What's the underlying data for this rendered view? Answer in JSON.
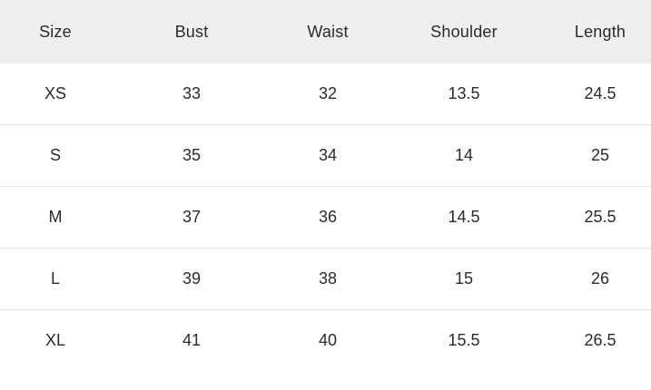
{
  "colors": {
    "page_background": "#ffffff",
    "header_background": "#efefef",
    "row_divider": "#e4e4e4",
    "text": "#2b2b2b"
  },
  "chart_data": {
    "type": "table",
    "columns": [
      "Size",
      "Bust",
      "Waist",
      "Shoulder",
      "Length"
    ],
    "rows": [
      [
        "XS",
        "33",
        "32",
        "13.5",
        "24.5"
      ],
      [
        "S",
        "35",
        "34",
        "14",
        "25"
      ],
      [
        "M",
        "37",
        "36",
        "14.5",
        "25.5"
      ],
      [
        "L",
        "39",
        "38",
        "15",
        "26"
      ],
      [
        "XL",
        "41",
        "40",
        "15.5",
        "26.5"
      ]
    ],
    "layout": {
      "grid": "horizontal-row-dividers-only",
      "header_style": "gray-band",
      "cell_alignment": "center"
    }
  }
}
